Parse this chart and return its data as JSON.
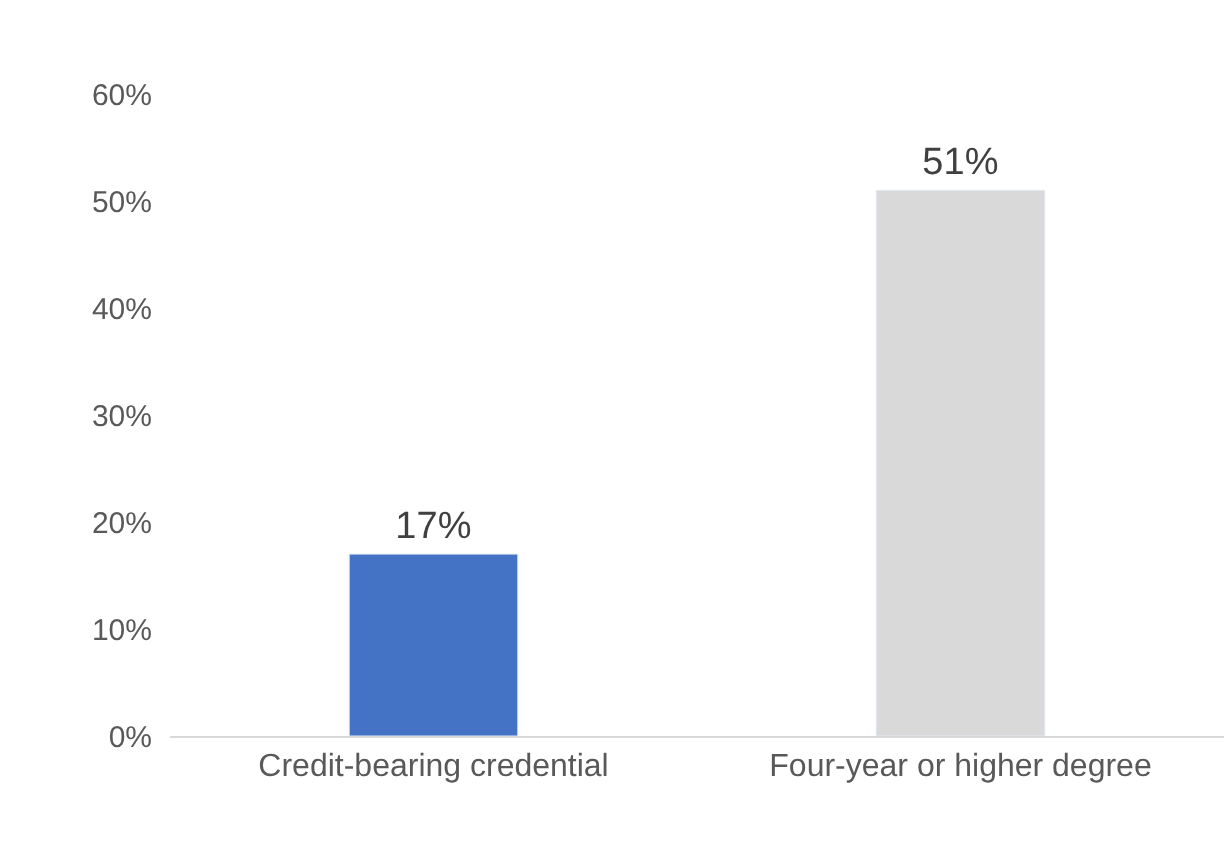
{
  "chart_data": {
    "type": "bar",
    "categories": [
      "Credit-bearing credential",
      "Four-year or higher degree"
    ],
    "values": [
      17,
      51
    ],
    "colors": [
      "#4472c4",
      "#d9d9d9"
    ],
    "value_labels": [
      "17%",
      "51%"
    ],
    "ylim": [
      0,
      60
    ],
    "yticks": [
      {
        "value": 0,
        "label": "0%"
      },
      {
        "value": 10,
        "label": "10%"
      },
      {
        "value": 20,
        "label": "20%"
      },
      {
        "value": 30,
        "label": "30%"
      },
      {
        "value": 40,
        "label": "40%"
      },
      {
        "value": 50,
        "label": "50%"
      },
      {
        "value": 60,
        "label": "60%"
      }
    ],
    "legend": false
  }
}
